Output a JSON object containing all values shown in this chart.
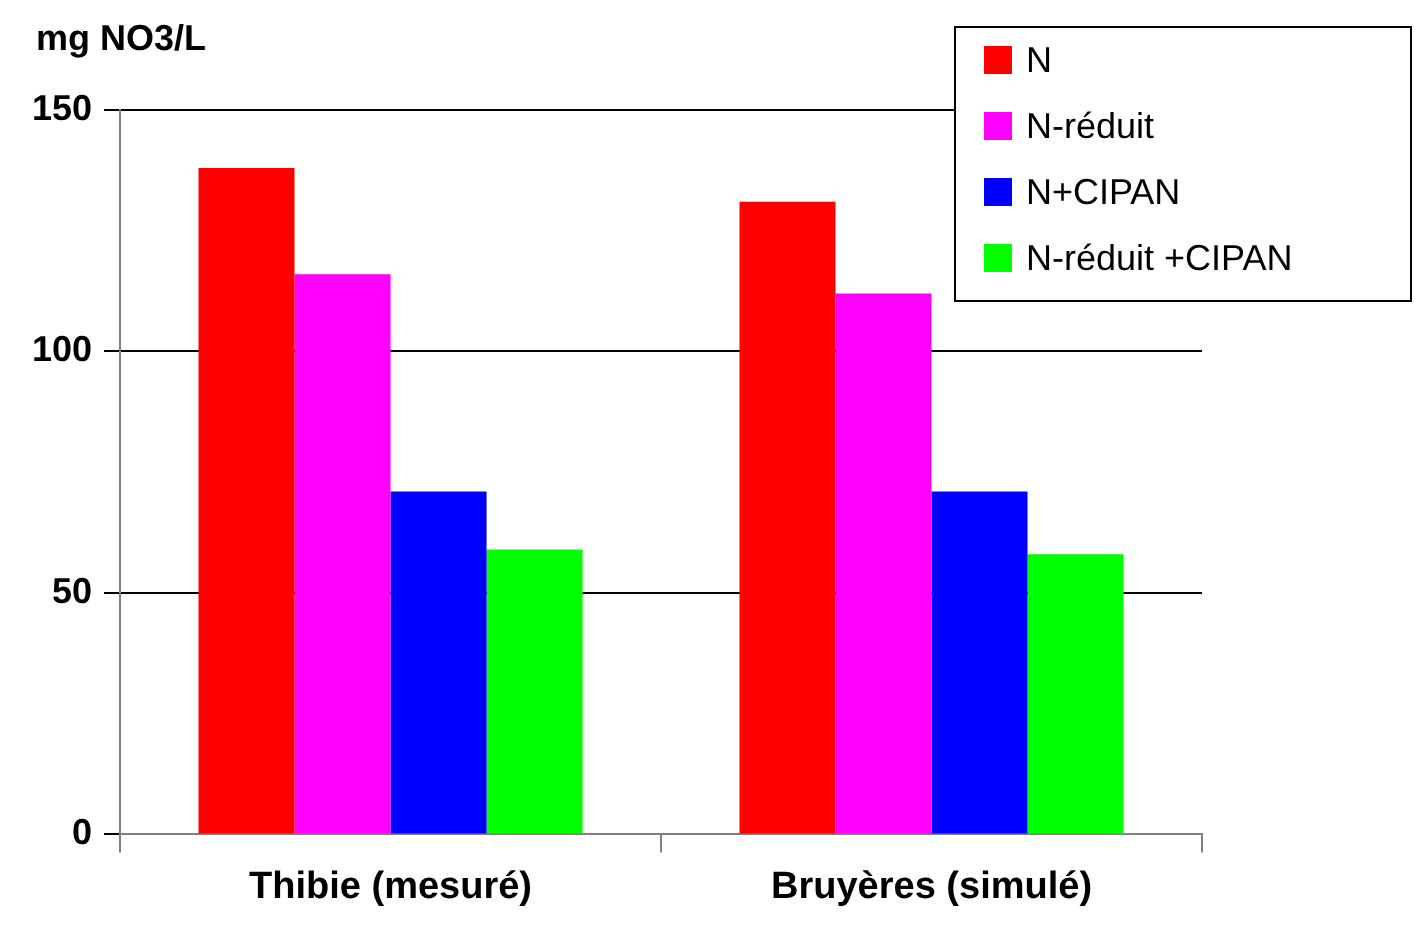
{
  "chart_data": {
    "type": "bar",
    "ylabel": "mg NO3/L",
    "categories": [
      "Thibie (mesuré)",
      "Bruyères (simulé)"
    ],
    "series": [
      {
        "name": "N",
        "color": "#ff0000",
        "values": [
          138,
          131
        ]
      },
      {
        "name": "N-réduit",
        "color": "#ff00ff",
        "values": [
          116,
          112
        ]
      },
      {
        "name": "N+CIPAN",
        "color": "#0000ff",
        "values": [
          71,
          71
        ]
      },
      {
        "name": "N-réduit +CIPAN",
        "color": "#00ff00",
        "values": [
          59,
          58
        ]
      }
    ],
    "ylim": [
      0,
      150
    ],
    "yticks": [
      0,
      50,
      100,
      150
    ],
    "grid": "y",
    "legend": "top right"
  }
}
